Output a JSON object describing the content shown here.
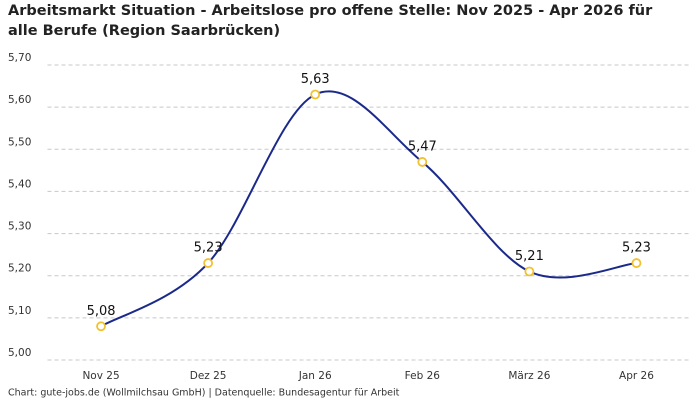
{
  "chart_data": {
    "type": "line",
    "title": "Arbeitsmarkt Situation - Arbeitslose pro offene Stelle: Nov 2025 - Apr 2026 für alle Berufe (Region Saarbrücken)",
    "categories": [
      "Nov 25",
      "Dez 25",
      "Jan 26",
      "Feb 26",
      "März 26",
      "Apr 26"
    ],
    "values": [
      5.08,
      5.23,
      5.63,
      5.47,
      5.21,
      5.23
    ],
    "value_labels": [
      "5,08",
      "5,23",
      "5,63",
      "5,47",
      "5,21",
      "5,23"
    ],
    "color": "#1b2a8a",
    "marker_color": "#f2c12e",
    "ylim": [
      5.0,
      5.7
    ],
    "yticks": [
      {
        "value": 5.0,
        "label": "5,00"
      },
      {
        "value": 5.1,
        "label": "5,10"
      },
      {
        "value": 5.2,
        "label": "5,20"
      },
      {
        "value": 5.3,
        "label": "5,30"
      },
      {
        "value": 5.4,
        "label": "5,40"
      },
      {
        "value": 5.5,
        "label": "5,50"
      },
      {
        "value": 5.6,
        "label": "5,60"
      },
      {
        "value": 5.7,
        "label": "5,70"
      }
    ],
    "grid": true,
    "smooth": true,
    "source": "Chart: gute-jobs.de (Wollmilchsau GmbH) | Datenquelle: Bundesagentur für Arbeit"
  }
}
